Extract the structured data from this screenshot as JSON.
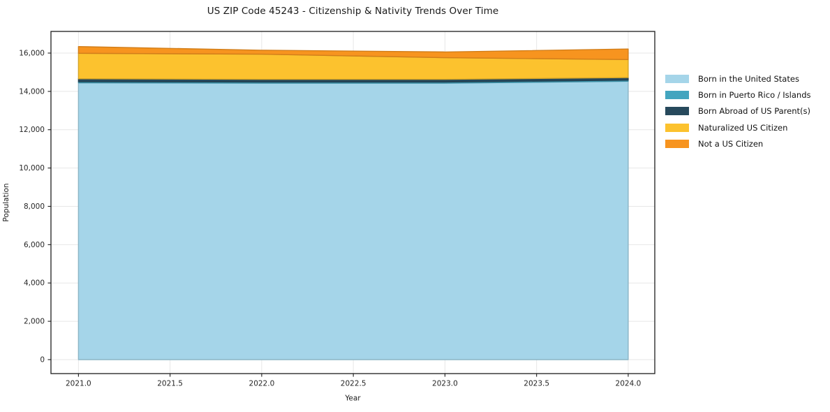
{
  "title": "US ZIP Code 45243 - Citizenship & Nativity Trends Over Time",
  "chart_data": {
    "type": "area",
    "stacked": true,
    "title": "US ZIP Code 45243 - Citizenship & Nativity Trends Over Time",
    "xlabel": "Year",
    "ylabel": "Population",
    "x": [
      2021,
      2022,
      2023,
      2024
    ],
    "series": [
      {
        "name": "Born in the United States",
        "color": "#a5d5e9",
        "values": [
          14450,
          14430,
          14430,
          14530
        ]
      },
      {
        "name": "Born in Puerto Rico / Islands",
        "color": "#43a5bf",
        "values": [
          60,
          60,
          60,
          60
        ]
      },
      {
        "name": "Born Abroad of US Parent(s)",
        "color": "#27495c",
        "values": [
          150,
          140,
          140,
          130
        ]
      },
      {
        "name": "Naturalized US Citizen",
        "color": "#fcc22e",
        "values": [
          1330,
          1310,
          1130,
          940
        ]
      },
      {
        "name": "Not a US Citizen",
        "color": "#f7941f",
        "values": [
          350,
          210,
          300,
          550
        ]
      }
    ],
    "stack_totals": [
      16340,
      16150,
      16060,
      16210
    ],
    "xlim": [
      2020.85,
      2024.145
    ],
    "ylim": [
      -730,
      17130
    ],
    "x_ticks": [
      2021.0,
      2021.5,
      2022.0,
      2022.5,
      2023.0,
      2023.5,
      2024.0
    ],
    "x_tick_labels": [
      "2021.0",
      "2021.5",
      "2022.0",
      "2022.5",
      "2023.0",
      "2023.5",
      "2024.0"
    ],
    "y_ticks": [
      0,
      2000,
      4000,
      6000,
      8000,
      10000,
      12000,
      14000,
      16000
    ],
    "y_tick_labels": [
      "0",
      "2,000",
      "4,000",
      "6,000",
      "8,000",
      "10,000",
      "12,000",
      "14,000",
      "16,000"
    ],
    "grid": true,
    "grid_color": "#e7e7e7",
    "spine_color": "#1c1c1c",
    "legend_position": "right-outside"
  }
}
